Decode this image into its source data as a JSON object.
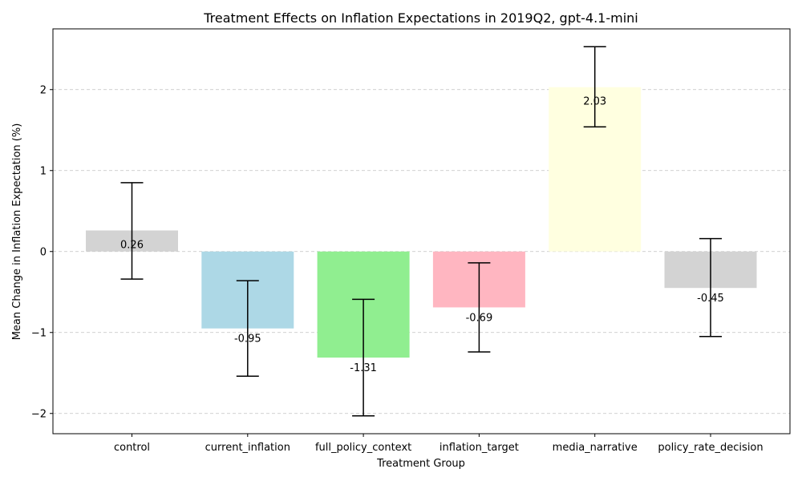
{
  "chart_data": {
    "type": "bar",
    "title": "Treatment Effects on Inflation Expectations in 2019Q2, gpt-4.1-mini",
    "xlabel": "Treatment Group",
    "ylabel": "Mean Change in Inflation Expectation (%)",
    "ylim": [
      -2.25,
      2.75
    ],
    "yticks": [
      -2,
      -1,
      0,
      1,
      2
    ],
    "ytick_labels": [
      "−2",
      "−1",
      "0",
      "1",
      "2"
    ],
    "grid": "horizontal-dashed",
    "categories": [
      "control",
      "current_inflation",
      "full_policy_context",
      "inflation_target",
      "media_narrative",
      "policy_rate_decision"
    ],
    "values": [
      0.26,
      -0.95,
      -1.31,
      -0.69,
      2.03,
      -0.45
    ],
    "value_labels": [
      "0.26",
      "-0.95",
      "-1.31",
      "-0.69",
      "2.03",
      "-0.45"
    ],
    "error_low": [
      -0.34,
      -1.54,
      -2.03,
      -1.24,
      1.54,
      -1.05
    ],
    "error_high": [
      0.85,
      -0.36,
      -0.59,
      -0.14,
      2.53,
      0.16
    ],
    "colors": [
      "#d3d3d3",
      "#add8e6",
      "#90ee90",
      "#ffb6c1",
      "#ffffe0",
      "#d3d3d3"
    ]
  }
}
